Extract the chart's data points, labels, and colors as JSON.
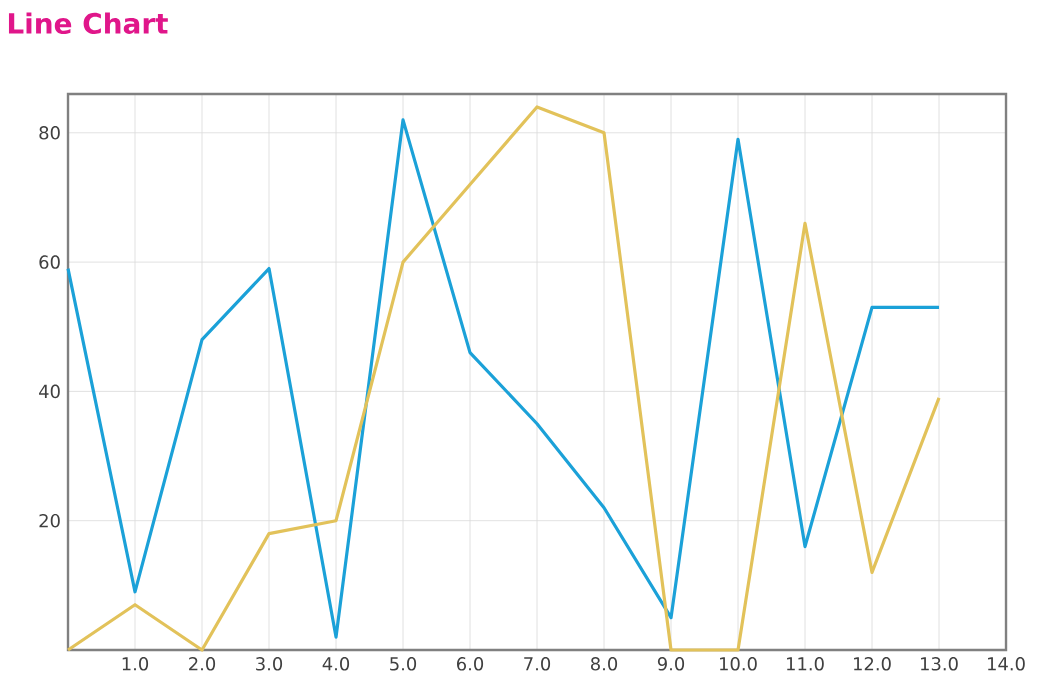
{
  "chart_data": {
    "type": "line",
    "title": "Line Chart",
    "x": [
      0,
      1,
      2,
      3,
      4,
      5,
      6,
      7,
      8,
      9,
      10,
      11,
      12,
      13
    ],
    "series": [
      {
        "color": "#1ba1d8",
        "values": [
          59,
          9,
          48,
          59,
          2,
          82,
          46,
          35,
          22,
          5,
          79,
          16,
          53,
          53
        ]
      },
      {
        "color": "#e2c25a",
        "values": [
          0,
          7,
          0,
          18,
          20,
          60,
          72,
          84,
          80,
          0,
          0,
          66,
          12,
          39
        ]
      }
    ],
    "xlim": [
      0,
      14
    ],
    "ylim": [
      0,
      86
    ],
    "xticks": [
      {
        "value": 1,
        "label": "1.0"
      },
      {
        "value": 2,
        "label": "2.0"
      },
      {
        "value": 3,
        "label": "3.0"
      },
      {
        "value": 4,
        "label": "4.0"
      },
      {
        "value": 5,
        "label": "5.0"
      },
      {
        "value": 6,
        "label": "6.0"
      },
      {
        "value": 7,
        "label": "7.0"
      },
      {
        "value": 8,
        "label": "8.0"
      },
      {
        "value": 9,
        "label": "9.0"
      },
      {
        "value": 10,
        "label": "10.0"
      },
      {
        "value": 11,
        "label": "11.0"
      },
      {
        "value": 12,
        "label": "12.0"
      },
      {
        "value": 13,
        "label": "13.0"
      },
      {
        "value": 14,
        "label": "14.0"
      }
    ],
    "yticks": [
      20,
      40,
      60,
      80
    ],
    "grid": true,
    "marker": "none",
    "line_style": "solid"
  }
}
